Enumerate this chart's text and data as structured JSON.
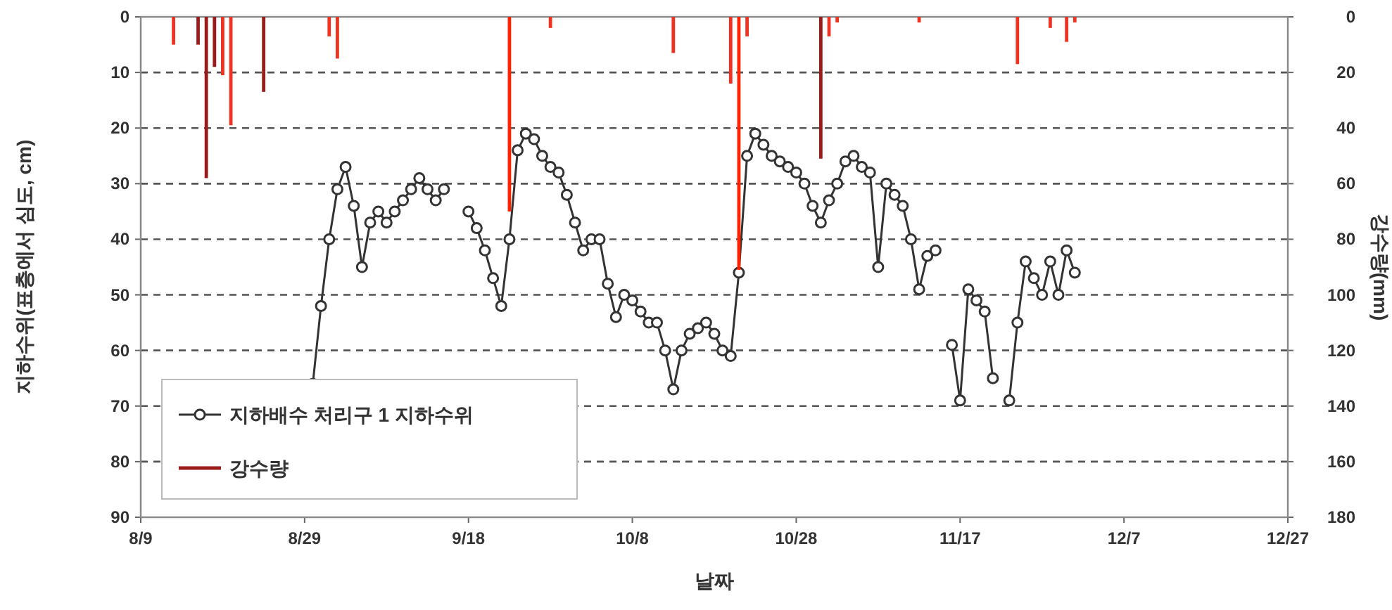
{
  "chart_data": {
    "type": "line",
    "xlabel": "날짜",
    "ylabel": "지하수위(표층에서 심도, cm)",
    "y2label": "강수량(mm)",
    "xlim": [
      "--08-09",
      "--12-27"
    ],
    "xticks": [
      {
        "value": "--08-09",
        "label": "8/9"
      },
      {
        "value": "--08-29",
        "label": "8/29"
      },
      {
        "value": "--09-18",
        "label": "9/18"
      },
      {
        "value": "--10-08",
        "label": "10/8"
      },
      {
        "value": "--10-28",
        "label": "10/28"
      },
      {
        "value": "--11-17",
        "label": "11/17"
      },
      {
        "value": "--12-07",
        "label": "12/7"
      },
      {
        "value": "--12-27",
        "label": "12/27"
      }
    ],
    "ylim": [
      90,
      0
    ],
    "yticks": [
      0,
      10,
      20,
      30,
      40,
      50,
      60,
      70,
      80,
      90
    ],
    "y2lim": [
      180,
      0
    ],
    "y2ticks": [
      0,
      20,
      40,
      60,
      80,
      100,
      120,
      140,
      160,
      180
    ],
    "grid": "y",
    "legend": "bottom left",
    "marker": "circle",
    "line_style": "solid",
    "series": [
      {
        "name": "지하배수 처리구 1 지하수위",
        "color": "#333333",
        "x": [
          "--08-30",
          "--08-31",
          "--09-01",
          "--09-02",
          "--09-03",
          "--09-04",
          "--09-05",
          "--09-06",
          "--09-07",
          "--09-08",
          "--09-09",
          "--09-10",
          "--09-11",
          "--09-12",
          "--09-13",
          "--09-14",
          "--09-15",
          "--09-16",
          "--09-18",
          "--09-19",
          "--09-20",
          "--09-21",
          "--09-22",
          "--09-23",
          "--09-24",
          "--09-25",
          "--09-26",
          "--09-27",
          "--09-28",
          "--09-29",
          "--09-30",
          "--10-01",
          "--10-02",
          "--10-03",
          "--10-04",
          "--10-05",
          "--10-06",
          "--10-07",
          "--10-08",
          "--10-09",
          "--10-10",
          "--10-11",
          "--10-12",
          "--10-13",
          "--10-14",
          "--10-15",
          "--10-16",
          "--10-17",
          "--10-18",
          "--10-19",
          "--10-20",
          "--10-21",
          "--10-22",
          "--10-23",
          "--10-24",
          "--10-25",
          "--10-26",
          "--10-27",
          "--10-28",
          "--10-29",
          "--10-30",
          "--10-31",
          "--11-01",
          "--11-02",
          "--11-03",
          "--11-04",
          "--11-05",
          "--11-06",
          "--11-07",
          "--11-08",
          "--11-09",
          "--11-10",
          "--11-11",
          "--11-12",
          "--11-13",
          "--11-14",
          "--11-15",
          "--11-16",
          "--11-17",
          "--11-18",
          "--11-19",
          "--11-20",
          "--11-21",
          "--11-22",
          "--11-23",
          "--11-24",
          "--11-25",
          "--11-26",
          "--11-27",
          "--11-28",
          "--11-29",
          "--11-30",
          "--12-01"
        ],
        "values": [
          66,
          52,
          40,
          31,
          27,
          34,
          45,
          37,
          35,
          37,
          35,
          33,
          31,
          29,
          31,
          33,
          31,
          null,
          35,
          38,
          42,
          47,
          52,
          40,
          24,
          21,
          22,
          25,
          27,
          28,
          32,
          37,
          42,
          40,
          40,
          48,
          54,
          50,
          51,
          53,
          55,
          55,
          60,
          67,
          60,
          57,
          56,
          55,
          57,
          60,
          61,
          46,
          25,
          21,
          23,
          25,
          26,
          27,
          28,
          30,
          34,
          37,
          33,
          30,
          26,
          25,
          27,
          28,
          45,
          30,
          32,
          34,
          40,
          49,
          43,
          42,
          null,
          59,
          69,
          49,
          51,
          53,
          65,
          null,
          69,
          55,
          44,
          47,
          50,
          44,
          50,
          42,
          46
        ]
      },
      {
        "name": "강수량",
        "type": "bar",
        "axis": "y2",
        "color": "#9b1b1b",
        "x": [
          "--08-13",
          "--08-16",
          "--08-17",
          "--08-18",
          "--08-19",
          "--08-20",
          "--08-24",
          "--09-01",
          "--09-02",
          "--09-23",
          "--09-28",
          "--10-13",
          "--10-20",
          "--10-21",
          "--10-22",
          "--10-31",
          "--11-01",
          "--11-02",
          "--11-12",
          "--11-24",
          "--11-28",
          "--11-30",
          "--12-01"
        ],
        "values": [
          10,
          10,
          58,
          18,
          21,
          39,
          27,
          7,
          15,
          70,
          4,
          13,
          24,
          91,
          7,
          51,
          7,
          2,
          2,
          17,
          4,
          9,
          2
        ],
        "colors": [
          "#ee3322",
          "#9b1b1b",
          "#9b1b1b",
          "#9b1b1b",
          "#ee3322",
          "#ee3322",
          "#9b1b1b",
          "#ee3322",
          "#ee3322",
          "#ff2200",
          "#ee3322",
          "#ee3322",
          "#ee3322",
          "#ff2200",
          "#ee3322",
          "#9b1b1b",
          "#ee3322",
          "#ee3322",
          "#ee3322",
          "#ee3322",
          "#ee3322",
          "#ee3322",
          "#ee3322"
        ]
      }
    ]
  }
}
